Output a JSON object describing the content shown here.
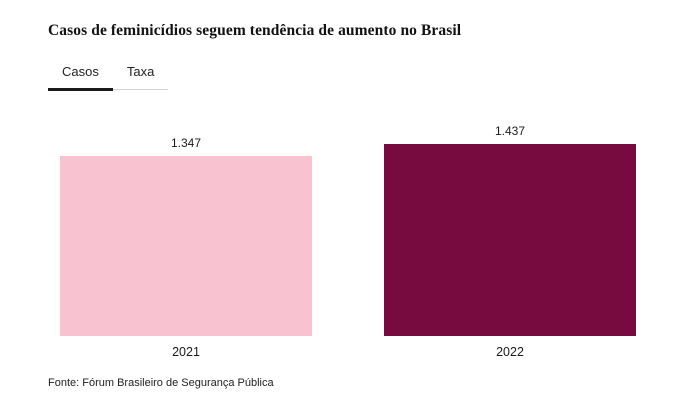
{
  "title": "Casos de feminicídios seguem tendência de aumento no Brasil",
  "tabs": [
    {
      "label": "Casos",
      "active": true
    },
    {
      "label": "Taxa",
      "active": false
    }
  ],
  "source": "Fonte: Fórum Brasileiro de Segurança Pública",
  "colors": {
    "tab_active_underline": "#1a1a1a",
    "tab_divider": "#d6d6d6"
  },
  "chart_data": {
    "type": "bar",
    "title": "Casos de feminicídios seguem tendência de aumento no Brasil",
    "categories": [
      "2021",
      "2022"
    ],
    "values": [
      1347,
      1437
    ],
    "value_labels": [
      "1.347",
      "1.437"
    ],
    "bar_colors": [
      "#f9c2d1",
      "#770b3f"
    ],
    "xlabel": "",
    "ylabel": "",
    "ylim": [
      0,
      1500
    ],
    "grid": false,
    "legend": "none",
    "source": "Fonte: Fórum Brasileiro de Segurança Pública"
  }
}
